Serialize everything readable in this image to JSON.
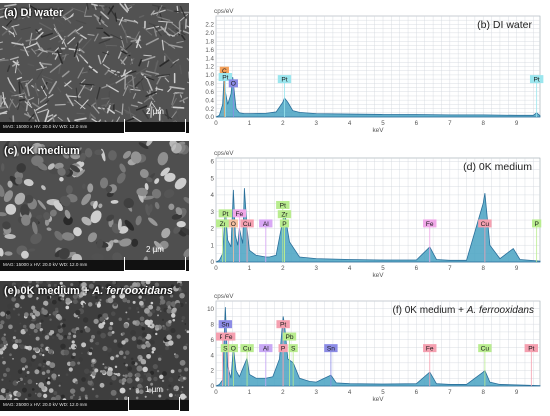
{
  "panels": [
    {
      "label": "(a) DI water",
      "mag": "MAG: 15000 x  HV: 20.0 kV  WD: 12.0 mm",
      "scale": "2 µm"
    },
    {
      "label": "(c) 0K medium",
      "mag": "MAG: 15000 x  HV: 20.0 kV  WD: 12.0 mm",
      "scale": "2 µm"
    },
    {
      "label_main": "(e) 0K medium + ",
      "label_italic": "A. ferrooxidans",
      "mag": "MAG: 25000 x  HV: 20.0 kV  WD: 12.0 mm",
      "scale": "1 µm"
    }
  ],
  "chart_data": [
    {
      "type": "line",
      "title": "(b) DI water",
      "ylabel": "cps/eV",
      "xlabel": "keV",
      "ylim": [
        0,
        2.4
      ],
      "xlim": [
        0,
        9.7
      ],
      "yticks": [
        0,
        0.2,
        0.4,
        0.6,
        0.8,
        1.0,
        1.2,
        1.4,
        1.6,
        1.8,
        2.0,
        2.2
      ],
      "ytick_labels": [
        "0.0",
        "0.2",
        "0.4",
        "0.6",
        "0.8",
        "1.0",
        "1.2",
        "1.4",
        "1.6",
        "1.8",
        "2.0",
        "2.2"
      ],
      "xticks": [
        0,
        1,
        2,
        3,
        4,
        5,
        6,
        7,
        8,
        9
      ],
      "series": [
        {
          "x": [
            0.0,
            0.1,
            0.2,
            0.25,
            0.28,
            0.35,
            0.45,
            0.5,
            0.52,
            0.6,
            0.7,
            0.85,
            1.0,
            1.5,
            1.8,
            2.0,
            2.05,
            2.15,
            2.3,
            2.5,
            3.0,
            4.0,
            5.0,
            6.0,
            7.0,
            8.0,
            9.0,
            9.5,
            9.6,
            9.7
          ],
          "y": [
            0.0,
            0.04,
            0.3,
            1.1,
            0.6,
            0.3,
            0.55,
            0.95,
            0.8,
            0.2,
            0.1,
            0.08,
            0.08,
            0.09,
            0.12,
            0.35,
            0.45,
            0.35,
            0.15,
            0.11,
            0.08,
            0.07,
            0.06,
            0.06,
            0.05,
            0.05,
            0.04,
            0.04,
            0.1,
            0.03
          ]
        }
      ],
      "annotations": [
        {
          "x": 0.25,
          "y": 1.1,
          "label": "C",
          "color": "#f5a15a"
        },
        {
          "x": 0.28,
          "y": 0.95,
          "label": "Pt",
          "color": "#9be6ee"
        },
        {
          "x": 0.52,
          "y": 0.8,
          "label": "O",
          "color": "#8c8ce6"
        },
        {
          "x": 2.05,
          "y": 0.9,
          "label": "Pt",
          "color": "#9be6ee"
        },
        {
          "x": 9.6,
          "y": 0.9,
          "label": "Pt",
          "color": "#9be6ee"
        }
      ]
    },
    {
      "type": "line",
      "title": "(d) 0K medium",
      "ylabel": "cps/eV",
      "xlabel": "keV",
      "ylim": [
        0,
        6.2
      ],
      "xlim": [
        0,
        9.7
      ],
      "yticks": [
        0,
        1,
        2,
        3,
        4,
        5,
        6
      ],
      "ytick_labels": [
        "0",
        "1",
        "2",
        "3",
        "4",
        "5",
        "6"
      ],
      "xticks": [
        0,
        1,
        2,
        3,
        4,
        5,
        6,
        7,
        8,
        9
      ],
      "series": [
        {
          "x": [
            0.0,
            0.1,
            0.2,
            0.28,
            0.35,
            0.45,
            0.52,
            0.58,
            0.65,
            0.7,
            0.8,
            0.85,
            0.93,
            1.0,
            1.2,
            1.49,
            1.6,
            1.8,
            2.0,
            2.05,
            2.2,
            2.5,
            3.0,
            4.0,
            5.0,
            6.0,
            6.4,
            6.6,
            7.0,
            7.5,
            8.0,
            8.05,
            8.2,
            8.5,
            8.9,
            9.1,
            9.7
          ],
          "y": [
            0.0,
            0.1,
            0.5,
            3.1,
            1.3,
            0.9,
            4.3,
            1.6,
            1.0,
            2.0,
            1.1,
            4.4,
            2.0,
            0.7,
            0.4,
            0.3,
            0.3,
            0.4,
            2.5,
            3.0,
            1.2,
            0.3,
            0.2,
            0.15,
            0.12,
            0.12,
            0.9,
            0.15,
            0.1,
            0.1,
            3.5,
            4.1,
            1.0,
            0.2,
            0.8,
            0.15,
            0.05
          ]
        }
      ],
      "annotations": [
        {
          "x": 0.2,
          "y": 2.3,
          "label": "Zr",
          "color": "#b9ec8f"
        },
        {
          "x": 0.28,
          "y": 2.9,
          "label": "Pt",
          "color": "#b9ec8f"
        },
        {
          "x": 0.52,
          "y": 2.3,
          "label": "O",
          "color": "#f5c0a0"
        },
        {
          "x": 0.7,
          "y": 2.9,
          "label": "Fe",
          "color": "#f0a8e8"
        },
        {
          "x": 0.93,
          "y": 2.3,
          "label": "Cu",
          "color": "#f5a0b0"
        },
        {
          "x": 1.49,
          "y": 2.3,
          "label": "Al",
          "color": "#d9a8f5"
        },
        {
          "x": 2.0,
          "y": 3.4,
          "label": "Pt",
          "color": "#b9ec8f"
        },
        {
          "x": 2.05,
          "y": 2.85,
          "label": "Zr",
          "color": "#b9ec8f"
        },
        {
          "x": 2.05,
          "y": 2.3,
          "label": "P",
          "color": "#b9ec8f"
        },
        {
          "x": 6.4,
          "y": 2.3,
          "label": "Fe",
          "color": "#f0a8e8"
        },
        {
          "x": 8.05,
          "y": 2.3,
          "label": "Cu",
          "color": "#f5a0b0"
        },
        {
          "x": 9.6,
          "y": 2.3,
          "label": "P",
          "color": "#b9ec8f"
        }
      ]
    },
    {
      "type": "line",
      "title_main": "(f) 0K medium + ",
      "title_italic": "A. ferrooxidans",
      "ylabel": "cps/eV",
      "xlabel": "keV",
      "ylim": [
        0,
        11
      ],
      "xlim": [
        0,
        9.7
      ],
      "yticks": [
        0,
        2,
        4,
        6,
        8,
        10
      ],
      "ytick_labels": [
        "0",
        "2",
        "4",
        "6",
        "8",
        "10"
      ],
      "xticks": [
        0,
        1,
        2,
        3,
        4,
        5,
        6,
        7,
        8,
        9
      ],
      "series": [
        {
          "x": [
            0.0,
            0.1,
            0.2,
            0.28,
            0.35,
            0.45,
            0.52,
            0.6,
            0.7,
            0.93,
            1.0,
            1.2,
            1.49,
            1.7,
            1.9,
            2.01,
            2.05,
            2.15,
            2.31,
            2.5,
            2.8,
            3.0,
            3.44,
            3.6,
            4.0,
            5.0,
            6.0,
            6.4,
            6.6,
            7.0,
            7.5,
            8.0,
            8.05,
            8.2,
            8.5,
            9.0,
            9.7
          ],
          "y": [
            0.0,
            0.2,
            0.8,
            10.2,
            2.5,
            1.0,
            5.0,
            2.0,
            1.2,
            3.6,
            1.5,
            1.0,
            1.0,
            1.2,
            3.5,
            9.0,
            8.0,
            3.5,
            3.0,
            1.0,
            0.6,
            0.5,
            1.4,
            0.4,
            0.3,
            0.25,
            0.3,
            1.8,
            0.3,
            0.2,
            0.2,
            1.8,
            2.0,
            0.5,
            0.2,
            0.15,
            0.05
          ]
        }
      ],
      "annotations": [
        {
          "x": 0.28,
          "y": 8.0,
          "label": "Sn",
          "color": "#8c8ce6"
        },
        {
          "x": 0.2,
          "y": 6.4,
          "label": "Pt",
          "color": "#f5a0b0"
        },
        {
          "x": 0.28,
          "y": 4.9,
          "label": "S",
          "color": "#b9ec8f"
        },
        {
          "x": 0.38,
          "y": 6.4,
          "label": "Fe",
          "color": "#f5a0b0"
        },
        {
          "x": 0.52,
          "y": 4.9,
          "label": "O",
          "color": "#b9ec8f"
        },
        {
          "x": 0.93,
          "y": 4.9,
          "label": "Cu",
          "color": "#b9ec8f"
        },
        {
          "x": 1.49,
          "y": 4.9,
          "label": "Al",
          "color": "#c8a8f5"
        },
        {
          "x": 2.01,
          "y": 8.0,
          "label": "Pt",
          "color": "#f5a0b0"
        },
        {
          "x": 2.2,
          "y": 6.4,
          "label": "Pb",
          "color": "#b9ec8f"
        },
        {
          "x": 2.01,
          "y": 4.9,
          "label": "P",
          "color": "#f5a0b0"
        },
        {
          "x": 2.31,
          "y": 4.9,
          "label": "S",
          "color": "#b9ec8f"
        },
        {
          "x": 3.44,
          "y": 4.9,
          "label": "Sn",
          "color": "#8c8ce6"
        },
        {
          "x": 6.4,
          "y": 4.9,
          "label": "Fe",
          "color": "#f5a0b0"
        },
        {
          "x": 8.05,
          "y": 4.9,
          "label": "Cu",
          "color": "#b9ec8f"
        },
        {
          "x": 9.44,
          "y": 4.9,
          "label": "Pt",
          "color": "#f5a0b0"
        }
      ]
    }
  ],
  "colors": {
    "spectrum_fill": "#48a2c2",
    "spectrum_line": "#2a6f9a",
    "grid": "#d0d6dc",
    "axis_text": "#555555"
  }
}
